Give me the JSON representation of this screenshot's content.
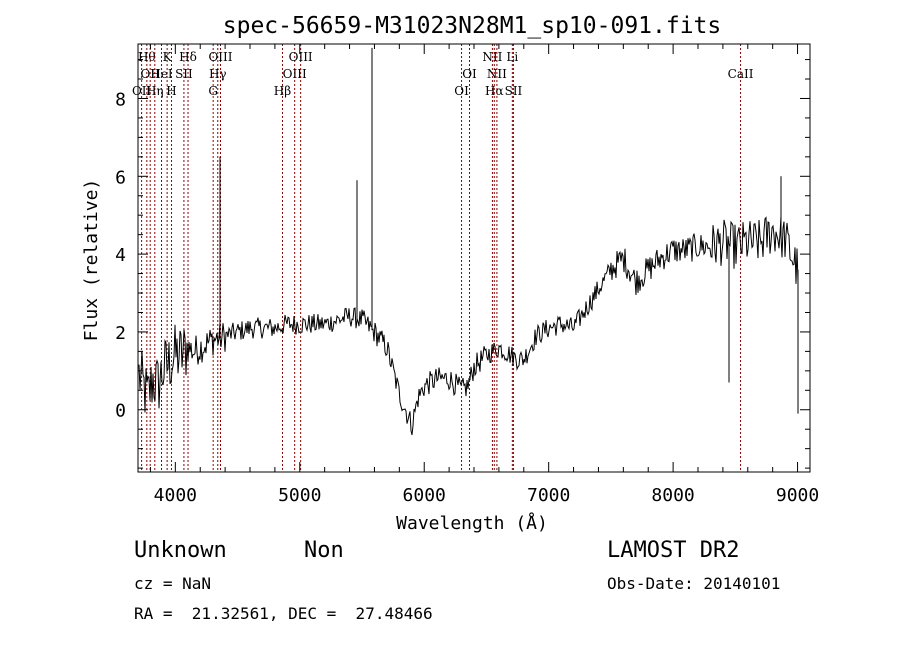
{
  "chart_data": {
    "type": "line",
    "title": "spec-56659-M31023N28M1_sp10-091.fits",
    "xlabel": "Wavelength (Å)",
    "ylabel": "Flux (relative)",
    "xlim": [
      3700,
      9100
    ],
    "ylim": [
      -1.6,
      9.4
    ],
    "x_ticks": [
      4000,
      5000,
      6000,
      7000,
      8000,
      9000
    ],
    "y_ticks": [
      0,
      2,
      4,
      6,
      8
    ],
    "x_tick_labels": [
      "4000",
      "5000",
      "6000",
      "7000",
      "8000",
      "9000"
    ],
    "y_tick_labels": [
      "0",
      "2",
      "4",
      "6",
      "8"
    ],
    "grid": false,
    "line_color": "#000000",
    "marker_color": "#8b0000",
    "spectrum_anchors": [
      [
        3710,
        0.9
      ],
      [
        3740,
        0.6
      ],
      [
        3780,
        0.3
      ],
      [
        3820,
        0.8
      ],
      [
        3860,
        0.6
      ],
      [
        3900,
        1.0
      ],
      [
        3950,
        1.2
      ],
      [
        4000,
        1.4
      ],
      [
        4050,
        1.4
      ],
      [
        4100,
        1.6
      ],
      [
        4150,
        1.5
      ],
      [
        4200,
        1.6
      ],
      [
        4250,
        1.7
      ],
      [
        4300,
        1.8
      ],
      [
        4400,
        1.9
      ],
      [
        4500,
        2.0
      ],
      [
        4600,
        2.1
      ],
      [
        4700,
        2.1
      ],
      [
        4800,
        2.1
      ],
      [
        4900,
        2.2
      ],
      [
        5000,
        2.2
      ],
      [
        5100,
        2.2
      ],
      [
        5200,
        2.2
      ],
      [
        5300,
        2.3
      ],
      [
        5400,
        2.4
      ],
      [
        5500,
        2.3
      ],
      [
        5600,
        2.0
      ],
      [
        5700,
        1.6
      ],
      [
        5750,
        1.0
      ],
      [
        5800,
        0.4
      ],
      [
        5850,
        0.0
      ],
      [
        5900,
        -0.4
      ],
      [
        5950,
        0.3
      ],
      [
        6000,
        0.6
      ],
      [
        6100,
        0.8
      ],
      [
        6200,
        0.8
      ],
      [
        6300,
        0.5
      ],
      [
        6350,
        0.6
      ],
      [
        6400,
        1.1
      ],
      [
        6500,
        1.4
      ],
      [
        6600,
        1.6
      ],
      [
        6700,
        1.4
      ],
      [
        6750,
        1.3
      ],
      [
        6800,
        1.3
      ],
      [
        6900,
        1.9
      ],
      [
        7000,
        2.1
      ],
      [
        7100,
        2.2
      ],
      [
        7200,
        2.1
      ],
      [
        7300,
        2.6
      ],
      [
        7400,
        3.1
      ],
      [
        7500,
        3.6
      ],
      [
        7600,
        3.9
      ],
      [
        7700,
        3.3
      ],
      [
        7800,
        3.6
      ],
      [
        7900,
        3.9
      ],
      [
        8000,
        4.1
      ],
      [
        8100,
        4.1
      ],
      [
        8200,
        4.2
      ],
      [
        8300,
        4.2
      ],
      [
        8400,
        4.3
      ],
      [
        8500,
        4.2
      ],
      [
        8600,
        4.3
      ],
      [
        8700,
        4.3
      ],
      [
        8800,
        4.6
      ],
      [
        8900,
        4.4
      ],
      [
        9000,
        3.6
      ]
    ],
    "noise_segments": [
      {
        "from": 3700,
        "to": 4100,
        "amplitude": 1.4
      },
      {
        "from": 4100,
        "to": 4400,
        "amplitude": 0.7
      },
      {
        "from": 4400,
        "to": 5500,
        "amplitude": 0.45
      },
      {
        "from": 5500,
        "to": 6500,
        "amplitude": 0.5
      },
      {
        "from": 6500,
        "to": 7500,
        "amplitude": 0.45
      },
      {
        "from": 7500,
        "to": 8300,
        "amplitude": 0.6
      },
      {
        "from": 8300,
        "to": 9010,
        "amplitude": 1.0
      }
    ],
    "spikes": [
      {
        "x": 4360,
        "y": 6.5
      },
      {
        "x": 5458,
        "y": 5.9
      },
      {
        "x": 5577,
        "y": 7.5
      },
      {
        "x": 5577.8,
        "y": 9.3
      },
      {
        "x": 8450,
        "y": 0.7
      },
      {
        "x": 8870,
        "y": 6.0
      },
      {
        "x": 9000,
        "y": -0.1
      }
    ],
    "line_markers": [
      {
        "x": 3729,
        "label": "OII",
        "row": 2
      },
      {
        "x": 3771,
        "label": "Hθ",
        "row": 0
      },
      {
        "x": 3798,
        "label": "OII",
        "row": 1
      },
      {
        "x": 3835,
        "label": "Hη",
        "row": 2
      },
      {
        "x": 3889,
        "label": "HeI",
        "row": 1
      },
      {
        "x": 3934,
        "label": "K",
        "row": 0
      },
      {
        "x": 3969,
        "label": "H",
        "row": 2
      },
      {
        "x": 4069,
        "label": "SII",
        "row": 1
      },
      {
        "x": 4102,
        "label": "Hδ",
        "row": 0
      },
      {
        "x": 4304,
        "label": "G",
        "row": 2
      },
      {
        "x": 4341,
        "label": "Hγ",
        "row": 1
      },
      {
        "x": 4363,
        "label": "OIII",
        "row": 0
      },
      {
        "x": 4861,
        "label": "Hβ",
        "row": 2
      },
      {
        "x": 4959,
        "label": "OIII",
        "row": 1
      },
      {
        "x": 5007,
        "label": "OIII",
        "row": 0
      },
      {
        "x": 6300,
        "label": "OI",
        "row": 2
      },
      {
        "x": 6364,
        "label": "OI",
        "row": 1
      },
      {
        "x": 6548,
        "label": "NII",
        "row": 0
      },
      {
        "x": 6563,
        "label": "Hα",
        "row": 2
      },
      {
        "x": 6584,
        "label": "NII",
        "row": 1
      },
      {
        "x": 6708,
        "label": "Li",
        "row": 0
      },
      {
        "x": 6717,
        "label": "SII",
        "row": 2
      },
      {
        "x": 8542,
        "label": "CaII",
        "row": 1
      }
    ]
  },
  "info": {
    "class": "Unknown",
    "subclass": "Non",
    "survey": "LAMOST DR2",
    "cz": "cz = NaN",
    "obs_date": "Obs-Date: 20140101",
    "coords": "RA =  21.32561, DEC =  27.48466"
  }
}
